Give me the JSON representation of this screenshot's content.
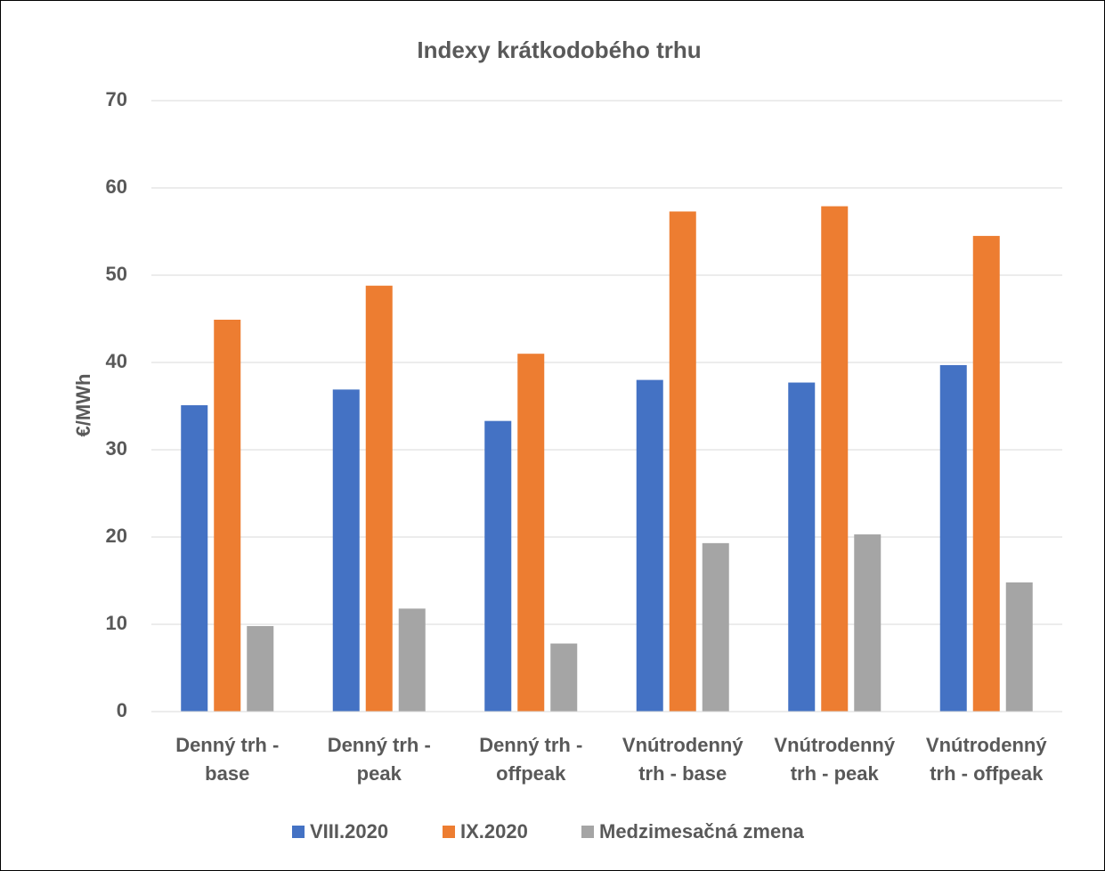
{
  "chart_data": {
    "type": "bar",
    "title": "Indexy krátkodobého trhu",
    "y_label": "€/MWh",
    "categories": [
      "Denný trh - base",
      "Denný trh - peak",
      "Denný trh - offpeak",
      "Vnútrodenný trh - base",
      "Vnútrodenný trh - peak",
      "Vnútrodenný trh - offpeak"
    ],
    "series": [
      {
        "name": "VIII.2020",
        "color": "#4472c4",
        "values": [
          35.1,
          36.9,
          33.3,
          38.0,
          37.7,
          39.7
        ]
      },
      {
        "name": "IX.2020",
        "color": "#ed7d31",
        "values": [
          44.9,
          48.8,
          41.0,
          57.3,
          57.9,
          54.5
        ]
      },
      {
        "name": "Medzimesačná zmena",
        "color": "#a5a5a5",
        "values": [
          9.8,
          11.8,
          7.8,
          19.3,
          20.3,
          14.8
        ]
      }
    ],
    "ylim": [
      0,
      70
    ],
    "yticks": [
      0,
      10,
      20,
      30,
      40,
      50,
      60,
      70
    ],
    "grid": true,
    "legend": "bottom"
  }
}
